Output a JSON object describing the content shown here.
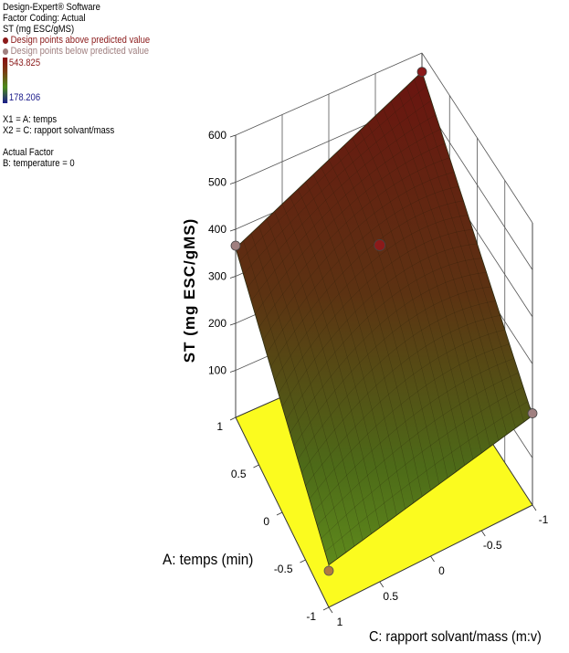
{
  "legend": {
    "software": "Design-Expert® Software",
    "coding": "Factor Coding: Actual",
    "response": "ST (mg ESC/gMS)",
    "above": "Design points above predicted value",
    "below": "Design points below predicted value",
    "above_color": "#8b1a1a",
    "below_color": "#a08080",
    "cb_max": "543.825",
    "cb_min": "178.206",
    "x1": "X1 = A: temps",
    "x2": "X2 = C: rapport solvant/mass",
    "actual_factor": "Actual Factor",
    "factor_b": "B: temperature = 0"
  },
  "chart_data": {
    "type": "surface3d",
    "zlabel": "ST (mg ESC/gMS)",
    "xlabel": "A: temps (min)",
    "ylabel": "C: rapport solvant/mass (m:v)",
    "z_ticks": [
      "100",
      "200",
      "300",
      "400",
      "500",
      "600"
    ],
    "z_range": [
      0,
      600
    ],
    "a_ticks": [
      "-1",
      "-0.5",
      "0",
      "0.5",
      "1"
    ],
    "c_ticks": [
      "-1",
      "-0.5",
      "0",
      "0.5",
      "1"
    ],
    "a_range": [
      -1,
      1
    ],
    "c_range": [
      -1,
      1
    ],
    "surface_corners": [
      {
        "A": 1,
        "C": 1,
        "ST": 360
      },
      {
        "A": 1,
        "C": -1,
        "ST": 560
      },
      {
        "A": -1,
        "C": -1,
        "ST": 190
      },
      {
        "A": -1,
        "C": 1,
        "ST": 90
      }
    ],
    "design_points": [
      {
        "A": 1,
        "C": 1,
        "ST": 365,
        "position": "below"
      },
      {
        "A": 1,
        "C": -1,
        "ST": 560,
        "position": "above"
      },
      {
        "A": -1,
        "C": -1,
        "ST": 195,
        "position": "below"
      },
      {
        "A": -1,
        "C": 1,
        "ST": 90,
        "position": "below"
      },
      {
        "A": 0,
        "C": 0,
        "ST": 470,
        "position": "above"
      }
    ],
    "floor_color": "#fbfb1f",
    "colormap": [
      "#1a1a8a",
      "#4a8a1a",
      "#7a3a12",
      "#8b0d12"
    ],
    "colorbar_range": [
      178.206,
      543.825
    ]
  }
}
